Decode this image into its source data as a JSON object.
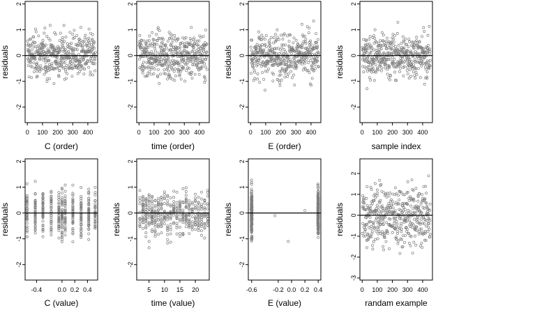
{
  "figure": {
    "layout": "2 rows x 4 columns residual scatter plots",
    "point_color": "#7f7f7f",
    "zero_line_color": "#000000"
  },
  "chart_data": [
    {
      "type": "scatter",
      "xlabel": "C (order)",
      "ylabel": "residuals",
      "xlim": [
        -15,
        465
      ],
      "ylim": [
        -2.6,
        2.1
      ],
      "hline": 0,
      "xticks": [
        0,
        100,
        200,
        300,
        400
      ],
      "xtick_labels": [
        "0",
        "100",
        "200",
        "300",
        "400"
      ],
      "yticks": [
        -2,
        -1,
        0,
        1,
        2
      ],
      "ytick_labels": [
        "-2",
        "-1",
        "0",
        "1",
        "2"
      ],
      "series": [
        {
          "n_points": 450,
          "x_range": [
            1,
            450
          ],
          "spread_sd": 0.6
        }
      ]
    },
    {
      "type": "scatter",
      "xlabel": "time (order)",
      "ylabel": "residuals",
      "xlim": [
        -15,
        465
      ],
      "ylim": [
        -2.6,
        2.1
      ],
      "hline": 0,
      "xticks": [
        0,
        100,
        200,
        300,
        400
      ],
      "xtick_labels": [
        "0",
        "100",
        "200",
        "300",
        "400"
      ],
      "yticks": [
        -2,
        -1,
        0,
        1,
        2
      ],
      "ytick_labels": [
        "-2",
        "-1",
        "0",
        "1",
        "2"
      ],
      "series": [
        {
          "n_points": 450,
          "x_range": [
            1,
            450
          ],
          "spread_sd": 0.6
        }
      ]
    },
    {
      "type": "scatter",
      "xlabel": "E (order)",
      "ylabel": "residuals",
      "xlim": [
        -15,
        465
      ],
      "ylim": [
        -2.6,
        2.1
      ],
      "hline": 0,
      "xticks": [
        0,
        100,
        200,
        300,
        400
      ],
      "xtick_labels": [
        "0",
        "100",
        "200",
        "300",
        "400"
      ],
      "yticks": [
        -2,
        -1,
        0,
        1,
        2
      ],
      "ytick_labels": [
        "-2",
        "-1",
        "0",
        "1",
        "2"
      ],
      "series": [
        {
          "n_points": 450,
          "x_range": [
            1,
            450
          ],
          "spread_sd": 0.6
        }
      ]
    },
    {
      "type": "scatter",
      "xlabel": "sample index",
      "ylabel": "residuals",
      "xlim": [
        -15,
        465
      ],
      "ylim": [
        -2.6,
        2.1
      ],
      "hline": 0,
      "xticks": [
        0,
        100,
        200,
        300,
        400
      ],
      "xtick_labels": [
        "0",
        "100",
        "200",
        "300",
        "400"
      ],
      "yticks": [
        -2,
        -1,
        0,
        1,
        2
      ],
      "ytick_labels": [
        "-2",
        "-1",
        "0",
        "1",
        "2"
      ],
      "series": [
        {
          "n_points": 450,
          "x_range": [
            1,
            450
          ],
          "spread_sd": 0.6
        }
      ]
    },
    {
      "type": "scatter",
      "xlabel": "C (value)",
      "ylabel": "residuals",
      "xlim": [
        -0.58,
        0.56
      ],
      "ylim": [
        -2.6,
        2.1
      ],
      "hline": 0,
      "xticks": [
        -0.4,
        0.0,
        0.2,
        0.4
      ],
      "xtick_labels": [
        "-0.4",
        "0.0",
        "0.2",
        "0.4"
      ],
      "yticks": [
        -2,
        -1,
        0,
        1,
        2
      ],
      "ytick_labels": [
        "-2",
        "-1",
        "0",
        "1",
        "2"
      ],
      "series": [
        {
          "n_points": 450,
          "x_levels": [
            -0.55,
            -0.42,
            -0.3,
            -0.17,
            -0.05,
            0.0,
            0.05,
            0.17,
            0.3,
            0.42,
            0.52
          ],
          "spread_sd": 0.6
        }
      ]
    },
    {
      "type": "scatter",
      "xlabel": "time (value)",
      "ylabel": "residuals",
      "xlim": [
        1,
        24.5
      ],
      "ylim": [
        -2.6,
        2.1
      ],
      "hline": 0,
      "xticks": [
        5,
        10,
        15,
        20
      ],
      "xtick_labels": [
        "5",
        "10",
        "15",
        "20"
      ],
      "yticks": [
        -2,
        -1,
        0,
        1,
        2
      ],
      "ytick_labels": [
        "-2",
        "-1",
        "0",
        "1",
        "2"
      ],
      "series": [
        {
          "n_points": 450,
          "x_levels": [
            2,
            3,
            4,
            5,
            6,
            7,
            8,
            9,
            10,
            11,
            12,
            13,
            14,
            15,
            16,
            17,
            18,
            19,
            20,
            21,
            22,
            23,
            24
          ],
          "spread_sd": 0.6
        }
      ]
    },
    {
      "type": "scatter",
      "xlabel": "E (value)",
      "ylabel": "residuals",
      "xlim": [
        -0.65,
        0.44
      ],
      "ylim": [
        -2.6,
        2.1
      ],
      "hline": 0,
      "xticks": [
        -0.6,
        -0.2,
        0.0,
        0.2,
        0.4
      ],
      "xtick_labels": [
        "-0.6",
        "-0.2",
        "0.0",
        "0.2",
        "0.4"
      ],
      "yticks": [
        -2,
        -1,
        0,
        1,
        2
      ],
      "ytick_labels": [
        "-2",
        "-1",
        "0",
        "1",
        "2"
      ],
      "series": [
        {
          "n_points": 450,
          "x_clusters": [
            -0.6,
            0.4
          ],
          "outliers": [
            [
              -0.25,
              -0.1
            ],
            [
              -0.05,
              -1.1
            ],
            [
              0.2,
              0.1
            ]
          ],
          "spread_sd": 0.6
        }
      ]
    },
    {
      "type": "scatter",
      "xlabel": "randam example",
      "ylabel": "residuals",
      "xlim": [
        -15,
        465
      ],
      "ylim": [
        -3.1,
        2.7
      ],
      "hline": 0,
      "xticks": [
        0,
        100,
        200,
        300,
        400
      ],
      "xtick_labels": [
        "0",
        "100",
        "200",
        "300",
        "400"
      ],
      "yticks": [
        -3,
        -2,
        -1,
        0,
        1,
        2
      ],
      "ytick_labels": [
        "-3",
        "-2",
        "-1",
        "0",
        "1",
        "2"
      ],
      "series": [
        {
          "n_points": 450,
          "x_range": [
            1,
            450
          ],
          "spread_sd": 1.0
        }
      ]
    }
  ]
}
